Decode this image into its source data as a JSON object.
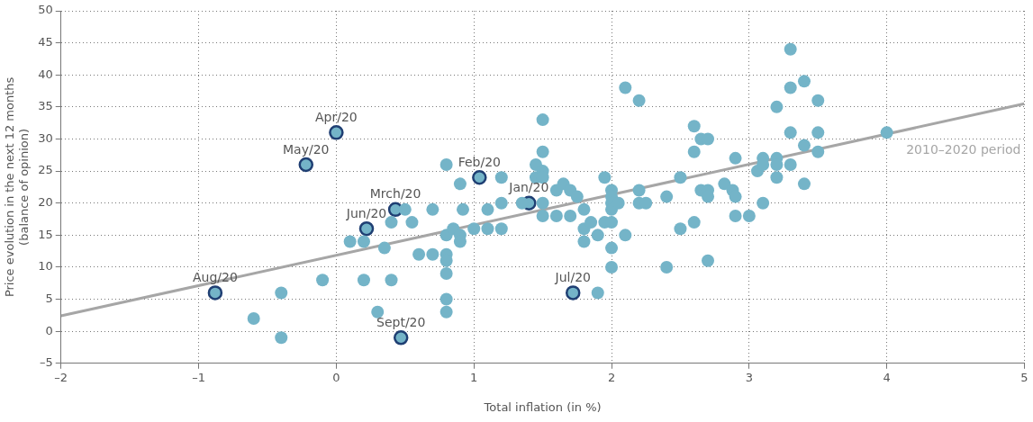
{
  "chart_data": {
    "type": "scatter",
    "xlabel": "Total inflation (in %)",
    "ylabel": "Price evolution in the next 12 months (balance of opinion)",
    "xlim": [
      -2,
      5
    ],
    "xticks": [
      {
        "value": -2,
        "label": "–2"
      },
      {
        "value": -1,
        "label": "–1"
      },
      0,
      1,
      2,
      3,
      4,
      5
    ],
    "ylim": [
      -5,
      50
    ],
    "yticks": [
      {
        "value": -5,
        "label": "–5"
      },
      0,
      5,
      10,
      15,
      20,
      25,
      30,
      35,
      40,
      45,
      50
    ],
    "grid": true,
    "legend": false,
    "marker": "circle",
    "series": [
      {
        "color": "#74b4c8",
        "x": [
          -0.6,
          -0.4,
          -0.4,
          -0.1,
          0.1,
          0.2,
          0.2,
          0.3,
          0.35,
          0.4,
          0.4,
          0.5,
          0.55,
          0.6,
          0.7,
          0.7,
          0.8,
          0.8,
          0.8,
          0.8,
          0.8,
          0.8,
          0.8,
          0.85,
          0.9,
          0.9,
          0.9,
          0.92,
          1.0,
          1.1,
          1.1,
          1.2,
          1.2,
          1.2,
          1.35,
          1.45,
          1.45,
          1.5,
          1.5,
          1.5,
          1.5,
          1.5,
          1.5,
          1.6,
          1.6,
          1.65,
          1.7,
          1.7,
          1.75,
          1.8,
          1.8,
          1.8,
          1.85,
          1.9,
          1.9,
          1.95,
          1.95,
          2.0,
          2.0,
          2.0,
          2.0,
          2.0,
          2.0,
          2.0,
          2.05,
          2.1,
          2.1,
          2.2,
          2.2,
          2.2,
          2.25,
          2.4,
          2.4,
          2.5,
          2.5,
          2.6,
          2.6,
          2.6,
          2.65,
          2.65,
          2.7,
          2.7,
          2.7,
          2.7,
          2.82,
          2.88,
          2.9,
          2.9,
          2.9,
          3.0,
          3.06,
          3.1,
          3.1,
          3.1,
          3.2,
          3.2,
          3.2,
          3.2,
          3.3,
          3.3,
          3.3,
          3.3,
          3.4,
          3.4,
          3.4,
          3.5,
          3.5,
          3.5,
          4.0
        ],
        "values": [
          2,
          6,
          -1,
          8,
          14,
          14,
          8,
          3,
          13,
          8,
          17,
          19,
          17,
          12,
          12,
          19,
          26,
          15,
          12,
          11,
          9,
          5,
          3,
          16,
          15,
          14,
          23,
          19,
          16,
          19,
          16,
          24,
          20,
          16,
          20,
          26,
          24,
          33,
          28,
          25,
          24,
          20,
          18,
          22,
          18,
          23,
          22,
          18,
          21,
          19,
          16,
          14,
          17,
          15,
          6,
          24,
          17,
          22,
          21,
          20,
          19,
          17,
          13,
          10,
          20,
          38,
          15,
          36,
          22,
          20,
          20,
          21,
          10,
          24,
          16,
          32,
          28,
          17,
          30,
          22,
          30,
          22,
          21,
          11,
          23,
          22,
          27,
          21,
          18,
          18,
          25,
          27,
          26,
          20,
          35,
          27,
          26,
          24,
          44,
          38,
          31,
          26,
          39,
          29,
          23,
          36,
          31,
          28,
          31
        ]
      },
      {
        "color": "#1f3f73",
        "x": [
          0,
          -0.22,
          0.43,
          0.22,
          -0.88,
          0.47,
          1.04,
          1.4,
          1.72
        ],
        "values": [
          31,
          26,
          19,
          16,
          6,
          -1,
          24,
          20,
          6
        ]
      },
      {
        "type": "line",
        "name": "2010–2020 period",
        "color": "#a6a6a6",
        "x": [
          -2,
          5
        ],
        "values": [
          2.4,
          35.5
        ],
        "marker": "none"
      }
    ],
    "annotations": [
      {
        "text": "Apr/20",
        "x": 0,
        "y": 31
      },
      {
        "text": "May/20",
        "x": -0.22,
        "y": 26
      },
      {
        "text": "Mrch/20",
        "x": 0.43,
        "y": 19
      },
      {
        "text": "Jun/20",
        "x": 0.22,
        "y": 16
      },
      {
        "text": "Aug/20",
        "x": -0.88,
        "y": 6
      },
      {
        "text": "Sept/20",
        "x": 0.47,
        "y": -1
      },
      {
        "text": "Feb/20",
        "x": 1.04,
        "y": 24
      },
      {
        "text": "Jan/20",
        "x": 1.4,
        "y": 20
      },
      {
        "text": "Jul/20",
        "x": 1.72,
        "y": 6
      }
    ]
  }
}
